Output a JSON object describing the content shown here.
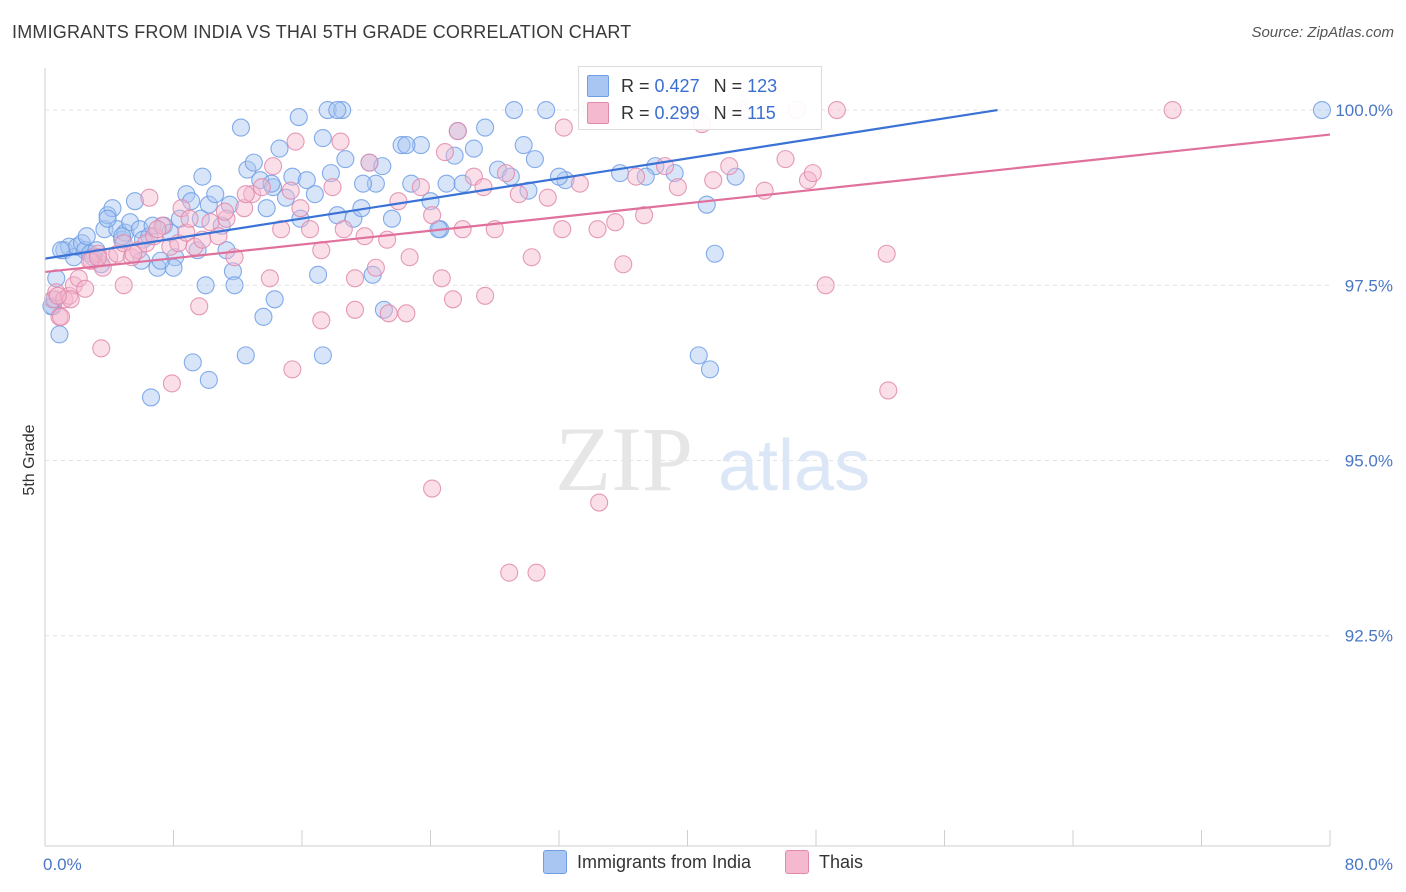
{
  "title": "IMMIGRANTS FROM INDIA VS THAI 5TH GRADE CORRELATION CHART",
  "source": "Source: ZipAtlas.com",
  "watermark": {
    "zip": "ZIP",
    "atlas": "atlas"
  },
  "stats": [
    {
      "r_label": "R = ",
      "r_value": "0.427",
      "n_label": "N = ",
      "n_value": "123"
    },
    {
      "r_label": "R = ",
      "r_value": "0.299",
      "n_label": "N = ",
      "n_value": "115"
    }
  ],
  "legend": [
    {
      "label": "Immigrants from India"
    },
    {
      "label": "Thais"
    }
  ],
  "chart_data": {
    "type": "scatter",
    "title": "IMMIGRANTS FROM INDIA VS THAI 5TH GRADE CORRELATION CHART",
    "xlabel": "",
    "ylabel": "5th Grade",
    "xlim": [
      0,
      80
    ],
    "ylim": [
      89.5,
      100.6
    ],
    "x_tick_labels": [
      "0.0%",
      "80.0%"
    ],
    "y_ticks": [
      {
        "value": 100.0,
        "label": "100.0%"
      },
      {
        "value": 97.5,
        "label": "97.5%"
      },
      {
        "value": 95.0,
        "label": "95.0%"
      },
      {
        "value": 92.5,
        "label": "92.5%"
      }
    ],
    "series": [
      {
        "name": "Immigrants from India",
        "color": "#6f9de6",
        "fill": "#a9c6f2",
        "trend": {
          "x": [
            0,
            59.3
          ],
          "y": [
            97.88,
            100.0
          ]
        },
        "points": [
          [
            0.5,
            97.2
          ],
          [
            0.7,
            97.6
          ],
          [
            0.9,
            96.8
          ],
          [
            1.2,
            98.0
          ],
          [
            1.5,
            98.05
          ],
          [
            1.8,
            97.9
          ],
          [
            2.0,
            98.05
          ],
          [
            2.3,
            98.1
          ],
          [
            2.5,
            98.0
          ],
          [
            2.8,
            97.95
          ],
          [
            3.0,
            97.9
          ],
          [
            3.2,
            98.0
          ],
          [
            3.5,
            97.8
          ],
          [
            3.7,
            98.3
          ],
          [
            3.9,
            98.5
          ],
          [
            4.2,
            98.6
          ],
          [
            4.5,
            98.3
          ],
          [
            4.8,
            98.15
          ],
          [
            5.0,
            98.25
          ],
          [
            5.3,
            98.4
          ],
          [
            5.6,
            98.7
          ],
          [
            5.9,
            98.3
          ],
          [
            6.1,
            98.15
          ],
          [
            6.5,
            98.2
          ],
          [
            6.7,
            98.35
          ],
          [
            7.0,
            97.75
          ],
          [
            7.4,
            98.35
          ],
          [
            7.8,
            98.25
          ],
          [
            8.1,
            97.9
          ],
          [
            8.4,
            98.45
          ],
          [
            8.8,
            98.8
          ],
          [
            9.1,
            98.7
          ],
          [
            9.5,
            98.0
          ],
          [
            9.8,
            99.05
          ],
          [
            10.2,
            98.65
          ],
          [
            10.6,
            98.8
          ],
          [
            11.0,
            98.35
          ],
          [
            11.3,
            98.0
          ],
          [
            11.7,
            97.7
          ],
          [
            12.2,
            99.75
          ],
          [
            12.6,
            99.15
          ],
          [
            13.0,
            99.25
          ],
          [
            13.4,
            99.0
          ],
          [
            13.8,
            98.6
          ],
          [
            14.2,
            98.9
          ],
          [
            14.6,
            99.45
          ],
          [
            15.0,
            98.75
          ],
          [
            15.4,
            99.05
          ],
          [
            15.9,
            98.45
          ],
          [
            16.3,
            99.0
          ],
          [
            16.8,
            98.8
          ],
          [
            17.3,
            99.6
          ],
          [
            17.8,
            99.1
          ],
          [
            18.2,
            98.5
          ],
          [
            18.7,
            99.3
          ],
          [
            19.2,
            98.45
          ],
          [
            19.7,
            98.6
          ],
          [
            20.2,
            99.25
          ],
          [
            20.6,
            98.95
          ],
          [
            21.0,
            99.2
          ],
          [
            21.6,
            98.45
          ],
          [
            22.2,
            99.5
          ],
          [
            22.8,
            98.95
          ],
          [
            23.4,
            99.5
          ],
          [
            24.0,
            98.7
          ],
          [
            24.6,
            98.3
          ],
          [
            25.0,
            98.95
          ],
          [
            25.5,
            99.35
          ],
          [
            26.0,
            98.95
          ],
          [
            26.7,
            99.45
          ],
          [
            27.4,
            99.75
          ],
          [
            28.2,
            99.15
          ],
          [
            29.0,
            99.05
          ],
          [
            29.8,
            99.5
          ],
          [
            30.5,
            99.3
          ],
          [
            31.2,
            100.0
          ],
          [
            32.4,
            99.0
          ],
          [
            34.0,
            100.0
          ],
          [
            35.8,
            99.1
          ],
          [
            38.0,
            99.2
          ],
          [
            41.2,
            98.65
          ],
          [
            41.7,
            97.95
          ],
          [
            17.0,
            97.65
          ],
          [
            20.4,
            97.65
          ],
          [
            21.1,
            97.15
          ],
          [
            14.3,
            97.3
          ],
          [
            13.6,
            97.05
          ],
          [
            12.5,
            96.5
          ],
          [
            9.2,
            96.4
          ],
          [
            10.2,
            96.15
          ],
          [
            6.6,
            95.9
          ],
          [
            17.3,
            96.5
          ],
          [
            41.4,
            96.3
          ],
          [
            40.7,
            96.5
          ],
          [
            11.8,
            97.5
          ],
          [
            10.0,
            97.5
          ],
          [
            8.0,
            97.75
          ],
          [
            7.2,
            97.85
          ],
          [
            6.0,
            97.85
          ],
          [
            1.0,
            98.0
          ],
          [
            0.4,
            97.2
          ],
          [
            0.6,
            97.3
          ],
          [
            79.5,
            100.0
          ],
          [
            17.6,
            100.0
          ],
          [
            18.5,
            100.0
          ],
          [
            29.2,
            100.0
          ],
          [
            25.7,
            99.7
          ],
          [
            15.8,
            99.9
          ],
          [
            19.8,
            98.95
          ],
          [
            24.5,
            98.3
          ],
          [
            22.5,
            99.5
          ],
          [
            30.1,
            98.85
          ],
          [
            32.0,
            99.05
          ],
          [
            37.4,
            99.05
          ],
          [
            39.2,
            99.1
          ],
          [
            43.0,
            99.05
          ],
          [
            18.2,
            100.0
          ],
          [
            14.1,
            98.95
          ],
          [
            11.5,
            98.65
          ],
          [
            9.7,
            98.45
          ],
          [
            4.8,
            98.2
          ],
          [
            3.9,
            98.45
          ],
          [
            2.6,
            98.2
          ]
        ]
      },
      {
        "name": "Thais",
        "color": "#e08aab",
        "fill": "#f4b8cf",
        "trend": {
          "x": [
            0,
            80
          ],
          "y": [
            97.69,
            99.65
          ]
        },
        "points": [
          [
            0.5,
            97.3
          ],
          [
            0.7,
            97.4
          ],
          [
            0.9,
            97.05
          ],
          [
            1.2,
            97.3
          ],
          [
            1.5,
            97.35
          ],
          [
            1.8,
            97.5
          ],
          [
            2.1,
            97.6
          ],
          [
            2.5,
            97.45
          ],
          [
            2.9,
            97.85
          ],
          [
            3.3,
            97.95
          ],
          [
            3.6,
            97.75
          ],
          [
            4.0,
            97.9
          ],
          [
            4.5,
            97.95
          ],
          [
            4.9,
            98.1
          ],
          [
            5.4,
            97.9
          ],
          [
            5.8,
            98.0
          ],
          [
            6.3,
            98.1
          ],
          [
            6.8,
            98.2
          ],
          [
            7.3,
            98.35
          ],
          [
            7.8,
            98.05
          ],
          [
            8.3,
            98.1
          ],
          [
            8.8,
            98.25
          ],
          [
            9.3,
            98.05
          ],
          [
            9.8,
            98.15
          ],
          [
            10.3,
            98.4
          ],
          [
            10.8,
            98.2
          ],
          [
            11.3,
            98.45
          ],
          [
            11.8,
            97.9
          ],
          [
            12.4,
            98.6
          ],
          [
            12.9,
            98.8
          ],
          [
            13.5,
            98.9
          ],
          [
            14.0,
            97.6
          ],
          [
            14.7,
            98.3
          ],
          [
            15.3,
            98.85
          ],
          [
            15.9,
            98.6
          ],
          [
            16.5,
            98.3
          ],
          [
            17.2,
            98.0
          ],
          [
            17.9,
            98.9
          ],
          [
            18.6,
            98.3
          ],
          [
            19.3,
            97.6
          ],
          [
            19.9,
            98.2
          ],
          [
            20.6,
            97.75
          ],
          [
            21.3,
            98.15
          ],
          [
            22.0,
            98.7
          ],
          [
            22.7,
            97.9
          ],
          [
            23.4,
            98.9
          ],
          [
            24.1,
            98.5
          ],
          [
            24.7,
            97.6
          ],
          [
            25.4,
            97.3
          ],
          [
            26.0,
            98.3
          ],
          [
            26.7,
            99.05
          ],
          [
            27.3,
            98.9
          ],
          [
            28.0,
            98.3
          ],
          [
            28.7,
            99.1
          ],
          [
            29.5,
            98.8
          ],
          [
            30.3,
            97.9
          ],
          [
            31.3,
            98.75
          ],
          [
            32.2,
            98.3
          ],
          [
            33.3,
            98.95
          ],
          [
            34.4,
            98.3
          ],
          [
            35.5,
            98.4
          ],
          [
            36.0,
            97.8
          ],
          [
            37.3,
            98.5
          ],
          [
            38.6,
            99.2
          ],
          [
            39.4,
            98.9
          ],
          [
            41.6,
            99.0
          ],
          [
            44.8,
            98.85
          ],
          [
            46.1,
            99.3
          ],
          [
            47.5,
            99.0
          ],
          [
            48.6,
            97.5
          ],
          [
            49.3,
            100.0
          ],
          [
            52.5,
            96.0
          ],
          [
            52.4,
            97.95
          ],
          [
            70.2,
            100.0
          ],
          [
            6.5,
            98.75
          ],
          [
            4.9,
            97.5
          ],
          [
            3.5,
            96.6
          ],
          [
            7.9,
            96.1
          ],
          [
            9.6,
            97.2
          ],
          [
            15.4,
            96.3
          ],
          [
            17.2,
            97.0
          ],
          [
            19.3,
            97.15
          ],
          [
            21.4,
            97.1
          ],
          [
            22.5,
            97.1
          ],
          [
            27.4,
            97.35
          ],
          [
            24.1,
            94.6
          ],
          [
            34.5,
            94.4
          ],
          [
            28.9,
            93.4
          ],
          [
            30.6,
            93.4
          ],
          [
            32.3,
            99.75
          ],
          [
            24.9,
            99.4
          ],
          [
            25.7,
            99.7
          ],
          [
            33.8,
            100.0
          ],
          [
            40.2,
            100.0
          ],
          [
            43.5,
            100.0
          ],
          [
            46.8,
            100.0
          ],
          [
            40.9,
            99.8
          ],
          [
            42.6,
            99.2
          ],
          [
            47.8,
            99.1
          ],
          [
            36.8,
            99.05
          ],
          [
            20.2,
            99.25
          ],
          [
            18.4,
            99.55
          ],
          [
            15.6,
            99.55
          ],
          [
            14.2,
            99.2
          ],
          [
            12.5,
            98.8
          ],
          [
            11.2,
            98.55
          ],
          [
            8.5,
            98.6
          ],
          [
            7.0,
            98.3
          ],
          [
            5.5,
            97.95
          ],
          [
            2.8,
            97.85
          ],
          [
            1.6,
            97.3
          ],
          [
            1.0,
            97.05
          ],
          [
            0.8,
            97.35
          ],
          [
            3.3,
            97.9
          ],
          [
            9.0,
            98.45
          ]
        ]
      }
    ]
  }
}
